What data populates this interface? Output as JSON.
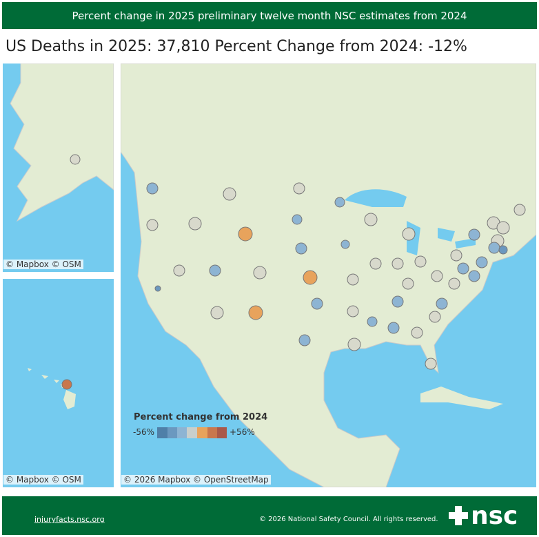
{
  "header": {
    "title": "Percent change in 2025 preliminary twelve month NSC estimates from 2024"
  },
  "summary": {
    "deaths_label": "US Deaths in 2025:",
    "deaths_value": "37,810",
    "change_label": "Percent Change from 2024:",
    "change_value": "-12%"
  },
  "legend": {
    "title": "Percent change from 2024",
    "min_label": "-56%",
    "max_label": "+56%"
  },
  "attributions": {
    "alaska": "© Mapbox © OSM",
    "hawaii": "© Mapbox © OSM",
    "main": "© 2026 Mapbox © OpenStreetMap"
  },
  "footer": {
    "link": "injuryfacts.nsc.org",
    "copyright": "© 2026 National Safety Council. All rights reserved.",
    "logo": "nsc"
  }
}
